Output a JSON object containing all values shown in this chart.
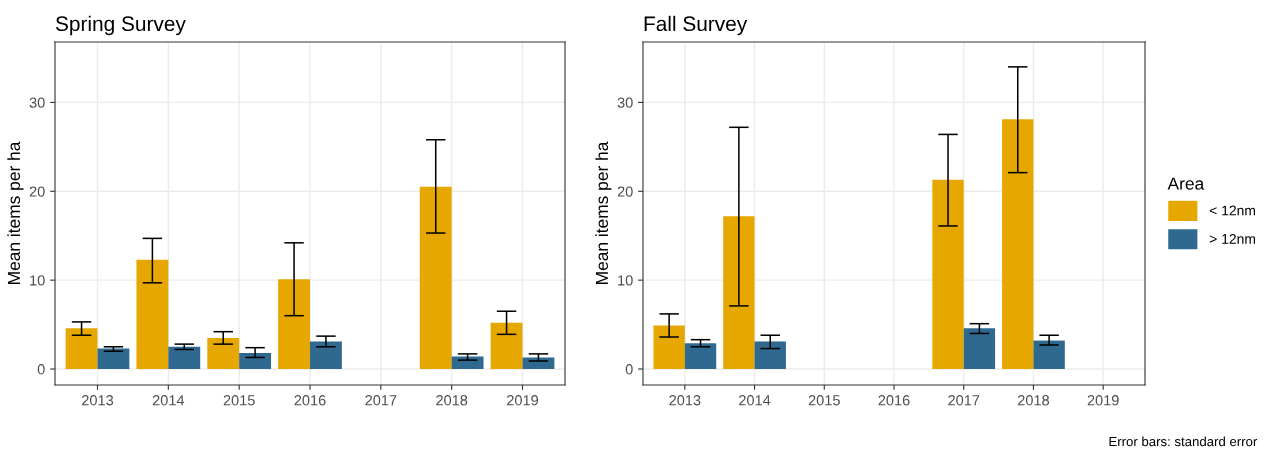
{
  "chart_data": [
    {
      "type": "bar",
      "title": "Spring Survey",
      "ylabel": "Mean items per ha",
      "categories": [
        "2013",
        "2014",
        "2015",
        "2016",
        "2017",
        "2018",
        "2019"
      ],
      "ylim": [
        -1.8,
        36.8
      ],
      "yticks": [
        0,
        10,
        20,
        30
      ],
      "grid": true,
      "series": [
        {
          "color": "#e6a800",
          "values": [
            4.6,
            12.3,
            3.5,
            10.1,
            null,
            20.5,
            5.2
          ],
          "errors": [
            [
              3.8,
              5.3
            ],
            [
              9.7,
              14.7
            ],
            [
              2.8,
              4.2
            ],
            [
              6.0,
              14.2
            ],
            null,
            [
              15.3,
              25.8
            ],
            [
              3.9,
              6.5
            ]
          ]
        },
        {
          "color": "#30698f",
          "values": [
            2.3,
            2.5,
            1.8,
            3.1,
            null,
            1.4,
            1.3
          ],
          "errors": [
            [
              2.0,
              2.5
            ],
            [
              2.2,
              2.8
            ],
            [
              1.3,
              2.4
            ],
            [
              2.5,
              3.7
            ],
            null,
            [
              1.0,
              1.7
            ],
            [
              0.9,
              1.7
            ]
          ]
        }
      ]
    },
    {
      "type": "bar",
      "title": "Fall Survey",
      "ylabel": "Mean items per ha",
      "categories": [
        "2013",
        "2014",
        "2015",
        "2016",
        "2017",
        "2018",
        "2019"
      ],
      "ylim": [
        -1.8,
        36.8
      ],
      "yticks": [
        0,
        10,
        20,
        30
      ],
      "grid": true,
      "legend": "right",
      "legend_title": "Area",
      "annotations": [
        "Error bars: standard error"
      ],
      "series": [
        {
          "name": "< 12nm",
          "color": "#e6a800",
          "values": [
            4.9,
            17.2,
            null,
            null,
            21.3,
            28.1,
            null
          ],
          "errors": [
            [
              3.6,
              6.2
            ],
            [
              7.1,
              27.2
            ],
            null,
            null,
            [
              16.1,
              26.4
            ],
            [
              22.1,
              34.0
            ],
            null
          ]
        },
        {
          "name": "> 12nm",
          "color": "#30698f",
          "values": [
            2.9,
            3.1,
            null,
            null,
            4.6,
            3.2,
            null
          ],
          "errors": [
            [
              2.5,
              3.3
            ],
            [
              2.3,
              3.8
            ],
            null,
            null,
            [
              4.0,
              5.1
            ],
            [
              2.7,
              3.8
            ],
            null
          ]
        }
      ]
    }
  ]
}
